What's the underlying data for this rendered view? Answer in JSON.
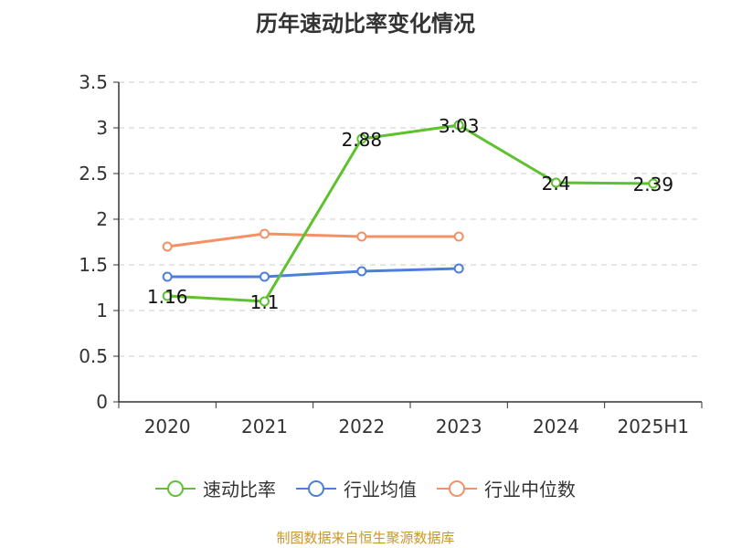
{
  "colors": {
    "speed_ratio": "#5dc22d",
    "industry_avg": "#4a7fdc",
    "industry_median": "#f59064",
    "grid": "#cccccc",
    "axis": "#333333",
    "source": "#c8962d"
  },
  "source_text": "制图数据来自恒生聚源数据库",
  "chart_data": {
    "type": "line",
    "title": "历年速动比率变化情况",
    "xlabel": "",
    "ylabel": "",
    "categories": [
      "2020",
      "2021",
      "2022",
      "2023",
      "2024",
      "2025H1"
    ],
    "y_ticks": [
      "0",
      "0.5",
      "1",
      "1.5",
      "2",
      "2.5",
      "3",
      "3.5"
    ],
    "ylim": [
      0,
      3.5
    ],
    "grid": true,
    "legend_position": "bottom",
    "series": [
      {
        "name": "速动比率",
        "color": "#5dc22d",
        "values": [
          1.16,
          1.1,
          2.88,
          3.03,
          2.4,
          2.39
        ],
        "labels": [
          "1.16",
          "1.1",
          "2.88",
          "3.03",
          "2.4",
          "2.39"
        ]
      },
      {
        "name": "行业均值",
        "color": "#4a7fdc",
        "values": [
          1.37,
          1.37,
          1.43,
          1.46,
          null,
          null
        ]
      },
      {
        "name": "行业中位数",
        "color": "#f59064",
        "values": [
          1.7,
          1.84,
          1.81,
          1.81,
          null,
          null
        ]
      }
    ]
  }
}
